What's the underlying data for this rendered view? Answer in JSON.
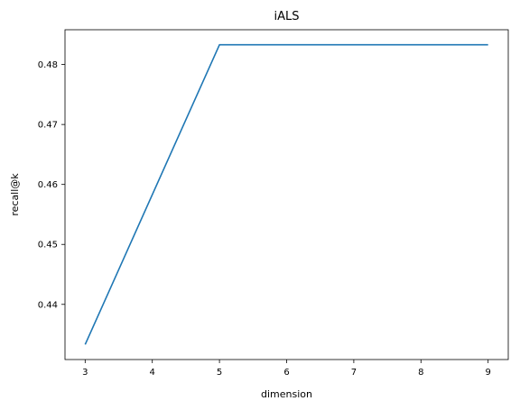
{
  "chart_data": {
    "type": "line",
    "title": "iALS",
    "xlabel": "dimension",
    "ylabel": "recall@k",
    "x": [
      3,
      5,
      6,
      7,
      8,
      9
    ],
    "series": [
      {
        "values": [
          0.4333,
          0.4833,
          0.4833,
          0.4833,
          0.4833,
          0.4833
        ],
        "color": "#1f77b4"
      }
    ],
    "xlim": [
      2.7,
      9.3
    ],
    "ylim": [
      0.4308,
      0.4858
    ],
    "xticks": [
      3,
      4,
      5,
      6,
      7,
      8,
      9
    ],
    "yticks": [
      0.44,
      0.45,
      0.46,
      0.47,
      0.48
    ],
    "ytick_labels": [
      "0.44",
      "0.45",
      "0.46",
      "0.47",
      "0.48"
    ],
    "grid": false
  }
}
